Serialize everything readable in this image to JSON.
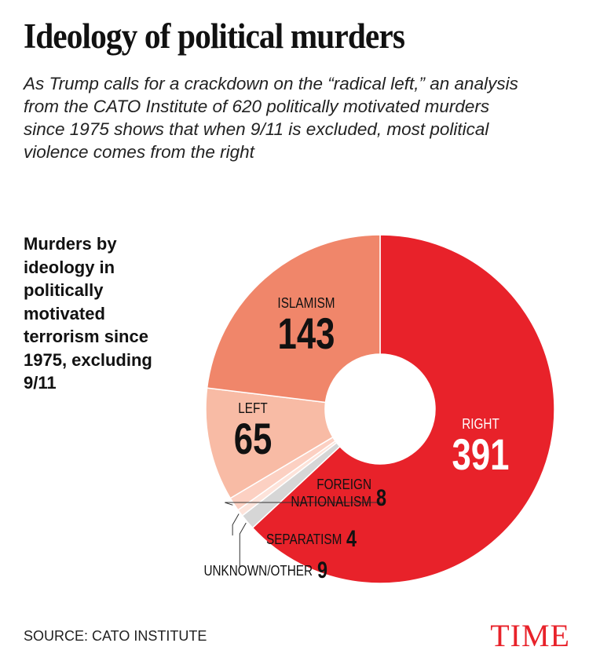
{
  "title": "Ideology of political murders",
  "subtitle": "As Trump calls for a crackdown on the “radical left,” an analysis from the CATO Institute of 620 politically motivated murders since 1975 shows that when 9/11 is excluded, most political violence comes from the right",
  "chart_data": {
    "type": "donut",
    "title": "Murders by ideology in politically motivated terrorism since 1975, excluding 9/11",
    "categories": [
      "RIGHT",
      "UNKNOWN/OTHER",
      "SEPARATISM",
      "FOREIGN NATIONALISM",
      "LEFT",
      "ISLAMISM"
    ],
    "values": [
      391,
      9,
      4,
      8,
      65,
      143
    ],
    "colors": [
      "#e8222a",
      "#d6d6d6",
      "#fde3da",
      "#fcd0c2",
      "#f8bba5",
      "#f0866a"
    ]
  },
  "source": "SOURCE: CATO INSTITUTE",
  "logo": "TIME"
}
